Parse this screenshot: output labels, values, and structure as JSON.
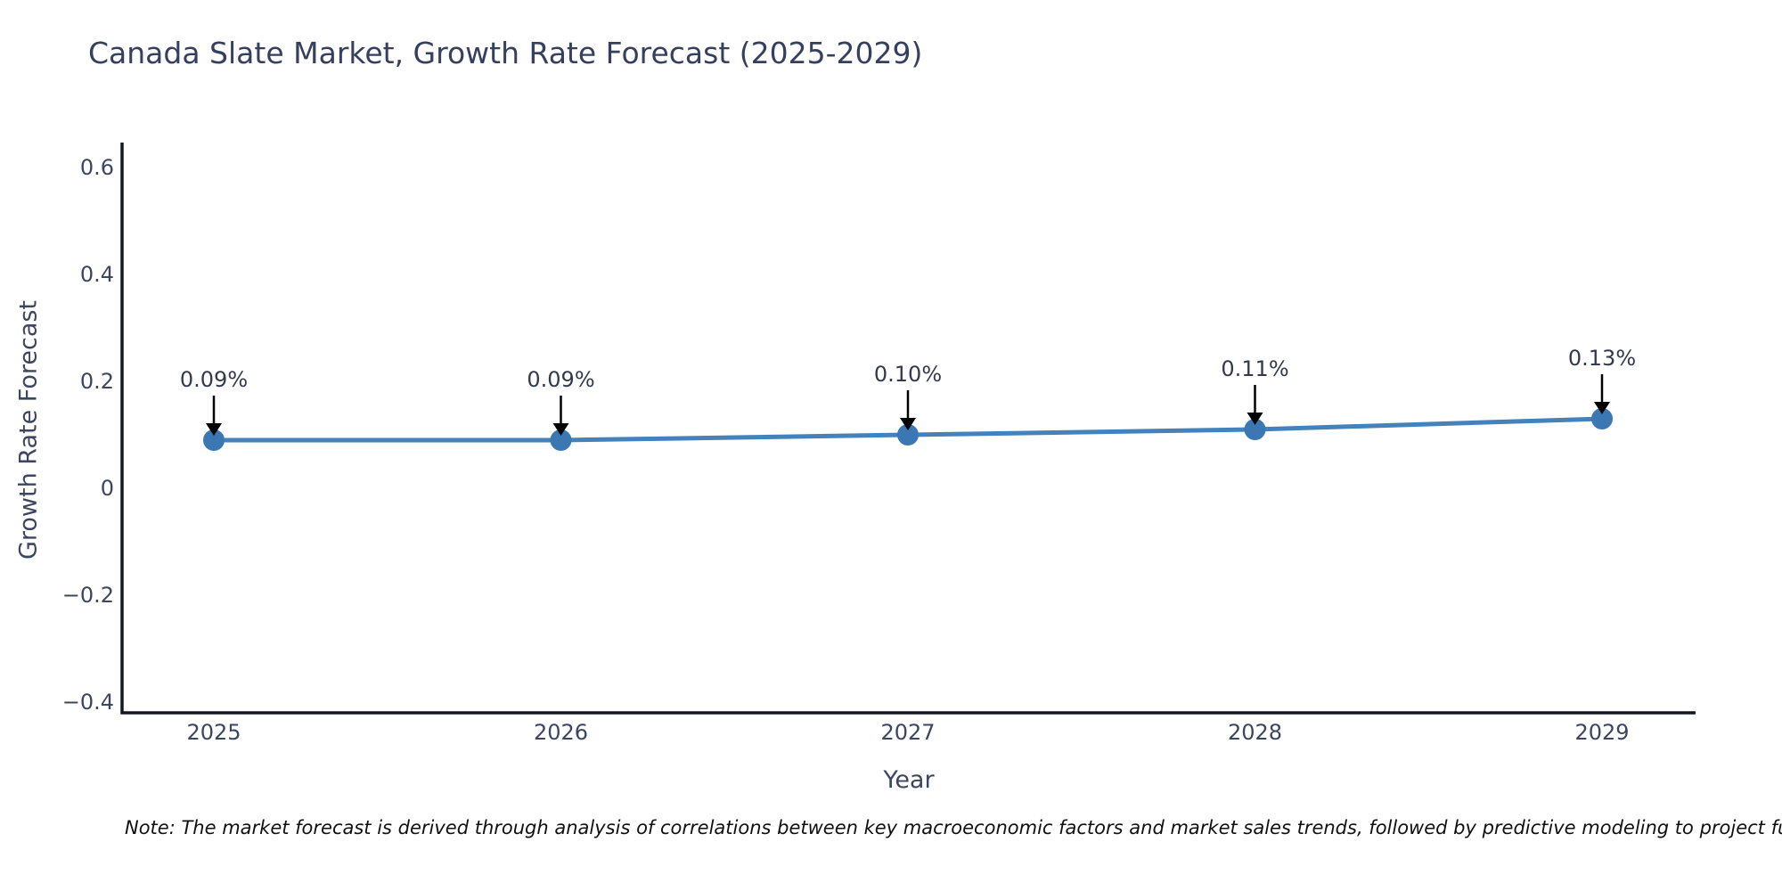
{
  "title": "Canada Slate Market, Growth Rate Forecast (2025-2029)",
  "note": "Note: The market forecast is derived through analysis of correlations between key macroeconomic factors and market sales trends, followed by predictive modeling to project future sa",
  "chart_data": {
    "type": "line",
    "title": "Canada Slate Market, Growth Rate Forecast (2025-2029)",
    "xlabel": "Year",
    "ylabel": "Growth Rate Forecast",
    "x": [
      2025,
      2026,
      2027,
      2028,
      2029
    ],
    "series": [
      {
        "name": "Growth Rate Forecast",
        "values": [
          0.09,
          0.09,
          0.1,
          0.11,
          0.13
        ]
      }
    ],
    "point_labels": [
      "0.09%",
      "0.09%",
      "0.10%",
      "0.11%",
      "0.13%"
    ],
    "yticks": [
      0.6,
      0.4,
      0.2,
      0,
      -0.2,
      -0.4
    ],
    "ytick_labels": [
      "0.6",
      "0.4",
      "0.2",
      "0",
      "−0.2",
      "−0.4"
    ],
    "ylim": [
      -0.42,
      0.647
    ],
    "grid": false,
    "legend": false,
    "colors": {
      "line": "#4382bc",
      "marker": "#3a77b3",
      "arrow": "#000000",
      "axis": "#151821",
      "title_text": "#353f5e",
      "tick_text": "#3c4660",
      "annotation_text": "#333a4d"
    }
  }
}
